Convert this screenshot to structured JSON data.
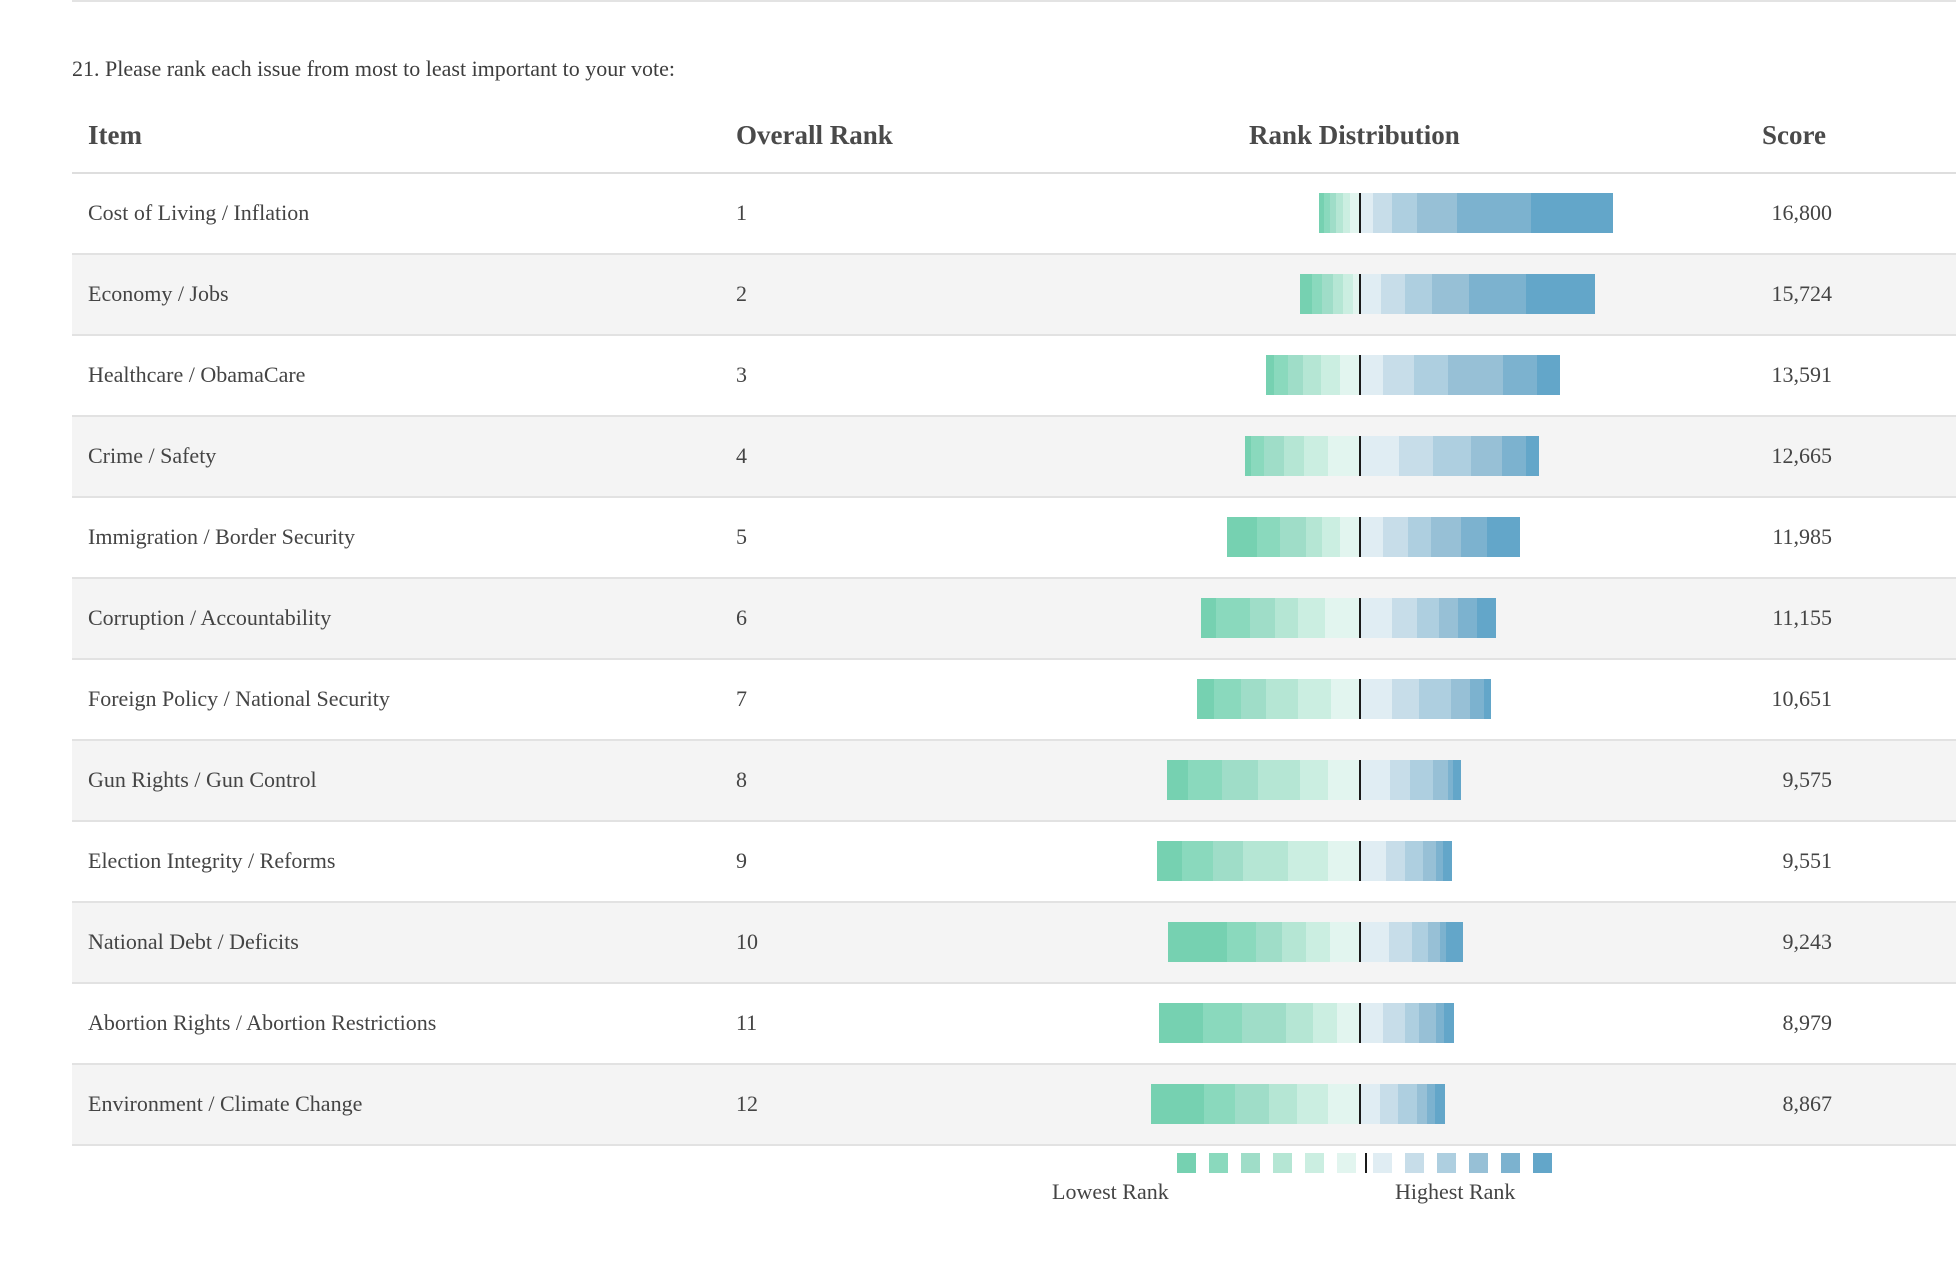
{
  "question": "21. Please rank each issue from most to least important to your vote:",
  "headers": {
    "item": "Item",
    "overall_rank": "Overall Rank",
    "rank_distribution": "Rank Distribution",
    "score": "Score"
  },
  "rows": [
    {
      "item": "Cost of Living / Inflation",
      "rank": "1",
      "score": "16,800"
    },
    {
      "item": "Economy / Jobs",
      "rank": "2",
      "score": "15,724"
    },
    {
      "item": "Healthcare / ObamaCare",
      "rank": "3",
      "score": "13,591"
    },
    {
      "item": "Crime / Safety",
      "rank": "4",
      "score": "12,665"
    },
    {
      "item": "Immigration / Border Security",
      "rank": "5",
      "score": "11,985"
    },
    {
      "item": "Corruption / Accountability",
      "rank": "6",
      "score": "11,155"
    },
    {
      "item": "Foreign Policy / National Security",
      "rank": "7",
      "score": "10,651"
    },
    {
      "item": "Gun Rights / Gun Control",
      "rank": "8",
      "score": "9,575"
    },
    {
      "item": "Election Integrity / Reforms",
      "rank": "9",
      "score": "9,551"
    },
    {
      "item": "National Debt / Deficits",
      "rank": "10",
      "score": "9,243"
    },
    {
      "item": "Abortion Rights / Abortion Restrictions",
      "rank": "11",
      "score": "8,979"
    },
    {
      "item": "Environment / Climate Change",
      "rank": "12",
      "score": "8,867"
    }
  ],
  "legend": {
    "lowest_label": "Lowest Rank",
    "highest_label": "Highest Rank"
  },
  "colors": {
    "rank_scale": [
      "#76d1b1",
      "#8ad9bd",
      "#9fddc8",
      "#b5e6d4",
      "#cbeee1",
      "#e2f5ef",
      "#e0edf3",
      "#c7dde9",
      "#aecfe0",
      "#97c0d6",
      "#7cb2cf",
      "#63a6c9"
    ],
    "midline": "#1a1a1a"
  },
  "chart_data": {
    "type": "bar",
    "subtype": "diverging-stacked",
    "title": "Rank Distribution",
    "xlabel": "",
    "ylabel": "",
    "segment_order": [
      "rank 12",
      "rank 11",
      "rank 10",
      "rank 9",
      "rank 8",
      "rank 7",
      "rank 6",
      "rank 5",
      "rank 4",
      "rank 3",
      "rank 2",
      "rank 1"
    ],
    "divider_between": [
      "rank 7",
      "rank 6"
    ],
    "unit": "percent of respondents (estimated)",
    "categories": [
      "Cost of Living / Inflation",
      "Economy / Jobs",
      "Healthcare / ObamaCare",
      "Crime / Safety",
      "Immigration / Border Security",
      "Corruption / Accountability",
      "Foreign Policy / National Security",
      "Gun Rights / Gun Control",
      "Election Integrity / Reforms",
      "National Debt / Deficits",
      "Abortion Rights / Abortion Restrictions",
      "Environment / Climate Change"
    ],
    "distributions": [
      [
        1.7,
        2.0,
        2.0,
        2.4,
        2.4,
        3.4,
        4.4,
        6.5,
        8.5,
        13.7,
        24.9,
        28.0
      ],
      [
        4.0,
        3.4,
        3.7,
        3.4,
        3.4,
        2.4,
        7.1,
        8.1,
        9.4,
        12.5,
        19.2,
        23.6
      ],
      [
        2.7,
        4.8,
        5.1,
        6.2,
        6.5,
        6.8,
        7.9,
        10.6,
        11.6,
        18.5,
        11.6,
        7.5
      ],
      [
        2.0,
        4.4,
        6.8,
        7.1,
        8.1,
        10.8,
        13.2,
        11.5,
        12.9,
        10.8,
        8.1,
        4.1
      ],
      [
        10.5,
        7.8,
        8.8,
        5.4,
        6.1,
        6.8,
        7.8,
        8.5,
        7.8,
        10.2,
        8.8,
        11.2
      ],
      [
        5.1,
        11.6,
        8.5,
        7.8,
        9.2,
        11.9,
        10.9,
        8.5,
        7.5,
        6.5,
        6.5,
        6.1
      ],
      [
        6.1,
        9.1,
        8.4,
        10.8,
        11.4,
        9.8,
        10.8,
        9.4,
        10.8,
        6.4,
        4.7,
        2.4
      ],
      [
        7.1,
        11.6,
        12.2,
        14.3,
        9.5,
        10.9,
        10.2,
        6.8,
        7.8,
        5.1,
        1.7,
        2.7
      ],
      [
        8.5,
        10.5,
        10.2,
        15.3,
        13.6,
        10.8,
        8.8,
        6.4,
        6.1,
        4.4,
        2.4,
        3.1
      ],
      [
        19.9,
        10.0,
        8.9,
        7.9,
        8.2,
        10.3,
        10.0,
        7.6,
        5.5,
        4.1,
        2.1,
        5.5
      ],
      [
        14.8,
        13.4,
        14.8,
        9.1,
        8.4,
        7.7,
        7.7,
        7.7,
        4.7,
        5.7,
        2.7,
        3.4
      ],
      [
        18.0,
        10.5,
        11.6,
        9.5,
        10.5,
        10.9,
        6.8,
        6.1,
        6.5,
        3.4,
        2.7,
        3.4
      ]
    ],
    "legend": [
      "Lowest Rank",
      "Highest Rank"
    ],
    "legend_position": "bottom-center"
  }
}
